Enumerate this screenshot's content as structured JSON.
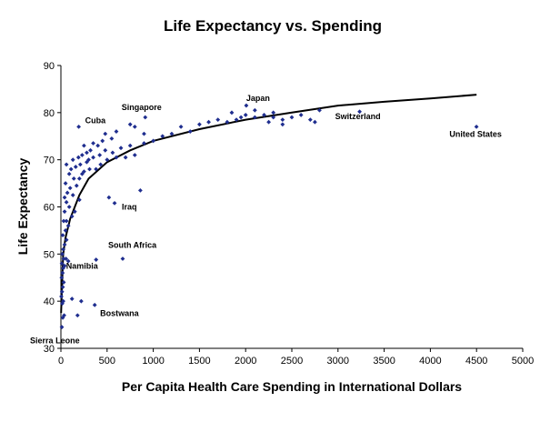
{
  "chart_data": {
    "type": "scatter",
    "title": "Life Expectancy vs. Spending",
    "xlabel": "Per Capita Health Care Spending in International Dollars",
    "ylabel": "Life Expectancy",
    "xlim": [
      0,
      5000
    ],
    "ylim": [
      30,
      90
    ],
    "x_ticks": [
      "0",
      "500",
      "1000",
      "1500",
      "2000",
      "2500",
      "3000",
      "3500",
      "4000",
      "4500",
      "5000"
    ],
    "y_ticks": [
      "30",
      "40",
      "50",
      "60",
      "70",
      "80",
      "90"
    ],
    "grid": false,
    "legend": "none",
    "marker_color": "#1F2E8F",
    "trend_color": "#000000",
    "trend_line": {
      "type": "logarithmic",
      "points": [
        [
          2,
          37.5
        ],
        [
          25,
          50
        ],
        [
          50,
          53.5
        ],
        [
          100,
          57.5
        ],
        [
          200,
          62.5
        ],
        [
          300,
          66
        ],
        [
          500,
          69.5
        ],
        [
          750,
          72
        ],
        [
          1000,
          74
        ],
        [
          1500,
          76.5
        ],
        [
          2000,
          78.5
        ],
        [
          2500,
          80
        ],
        [
          3000,
          81.5
        ],
        [
          3500,
          82.3
        ],
        [
          4000,
          83
        ],
        [
          4500,
          83.8
        ]
      ]
    },
    "annotations": [
      {
        "text": "Cuba",
        "x": 193,
        "y": 77
      },
      {
        "text": "Singapore",
        "x": 913,
        "y": 79
      },
      {
        "text": "Japan",
        "x": 2007,
        "y": 81.5
      },
      {
        "text": "Switzerland",
        "x": 3234,
        "y": 80.2
      },
      {
        "text": "United States",
        "x": 4499,
        "y": 77
      },
      {
        "text": "Iraq",
        "x": 581,
        "y": 60.8
      },
      {
        "text": "South Africa",
        "x": 669,
        "y": 49
      },
      {
        "text": "Namibia",
        "x": 381,
        "y": 48.8
      },
      {
        "text": "Bostwana",
        "x": 366,
        "y": 39.2
      },
      {
        "text": "Sierra Leone",
        "x": 30,
        "y": 34.5
      }
    ],
    "points": [
      [
        10,
        34.5
      ],
      [
        20,
        36.5
      ],
      [
        35,
        37
      ],
      [
        180,
        37
      ],
      [
        15,
        39.5
      ],
      [
        25,
        40
      ],
      [
        120,
        40.5
      ],
      [
        220,
        40
      ],
      [
        366,
        39.2
      ],
      [
        5,
        41
      ],
      [
        12,
        42
      ],
      [
        20,
        43
      ],
      [
        30,
        44
      ],
      [
        8,
        45
      ],
      [
        18,
        46
      ],
      [
        25,
        47
      ],
      [
        40,
        47.5
      ],
      [
        10,
        48
      ],
      [
        30,
        49
      ],
      [
        55,
        49
      ],
      [
        80,
        48.5
      ],
      [
        381,
        48.8
      ],
      [
        669,
        49
      ],
      [
        15,
        50
      ],
      [
        25,
        51
      ],
      [
        40,
        52
      ],
      [
        60,
        53
      ],
      [
        20,
        54
      ],
      [
        50,
        55
      ],
      [
        80,
        56
      ],
      [
        30,
        57
      ],
      [
        60,
        57
      ],
      [
        120,
        58
      ],
      [
        40,
        59
      ],
      [
        150,
        59
      ],
      [
        90,
        60
      ],
      [
        60,
        61
      ],
      [
        200,
        61.5
      ],
      [
        581,
        60.8
      ],
      [
        520,
        62
      ],
      [
        860,
        63.5
      ],
      [
        40,
        62
      ],
      [
        130,
        62.5
      ],
      [
        70,
        63
      ],
      [
        100,
        64
      ],
      [
        170,
        64.5
      ],
      [
        50,
        65
      ],
      [
        140,
        66
      ],
      [
        200,
        66
      ],
      [
        90,
        67
      ],
      [
        230,
        67
      ],
      [
        250,
        67.5
      ],
      [
        110,
        68
      ],
      [
        310,
        68
      ],
      [
        160,
        68.5
      ],
      [
        380,
        68
      ],
      [
        60,
        69
      ],
      [
        210,
        69
      ],
      [
        280,
        69.5
      ],
      [
        430,
        69
      ],
      [
        130,
        70
      ],
      [
        300,
        70
      ],
      [
        500,
        70
      ],
      [
        190,
        70.5
      ],
      [
        350,
        70.5
      ],
      [
        600,
        70.5
      ],
      [
        700,
        70.5
      ],
      [
        230,
        71
      ],
      [
        420,
        71
      ],
      [
        800,
        71
      ],
      [
        280,
        71.5
      ],
      [
        560,
        71.5
      ],
      [
        320,
        72
      ],
      [
        480,
        72
      ],
      [
        650,
        72.5
      ],
      [
        250,
        73
      ],
      [
        400,
        73
      ],
      [
        750,
        73
      ],
      [
        350,
        73.5
      ],
      [
        900,
        73.5
      ],
      [
        450,
        74
      ],
      [
        1000,
        74
      ],
      [
        550,
        74.5
      ],
      [
        1100,
        75
      ],
      [
        480,
        75.5
      ],
      [
        900,
        75.5
      ],
      [
        1200,
        75.5
      ],
      [
        600,
        76
      ],
      [
        1400,
        76
      ],
      [
        800,
        77
      ],
      [
        1300,
        77
      ],
      [
        193,
        77
      ],
      [
        750,
        77.5
      ],
      [
        1500,
        77.5
      ],
      [
        1600,
        78
      ],
      [
        1700,
        78.5
      ],
      [
        1800,
        78
      ],
      [
        1900,
        78.5
      ],
      [
        1950,
        79
      ],
      [
        2000,
        79.5
      ],
      [
        2100,
        79
      ],
      [
        2200,
        79.5
      ],
      [
        2300,
        79
      ],
      [
        2250,
        78
      ],
      [
        2400,
        78.5
      ],
      [
        2500,
        79
      ],
      [
        2600,
        79.5
      ],
      [
        2700,
        78.5
      ],
      [
        2750,
        78
      ],
      [
        2800,
        80.5
      ],
      [
        2100,
        80.5
      ],
      [
        2300,
        80
      ],
      [
        2400,
        77.5
      ],
      [
        1850,
        80
      ],
      [
        913,
        79
      ],
      [
        2007,
        81.5
      ],
      [
        3234,
        80.2
      ],
      [
        4499,
        77
      ]
    ]
  }
}
